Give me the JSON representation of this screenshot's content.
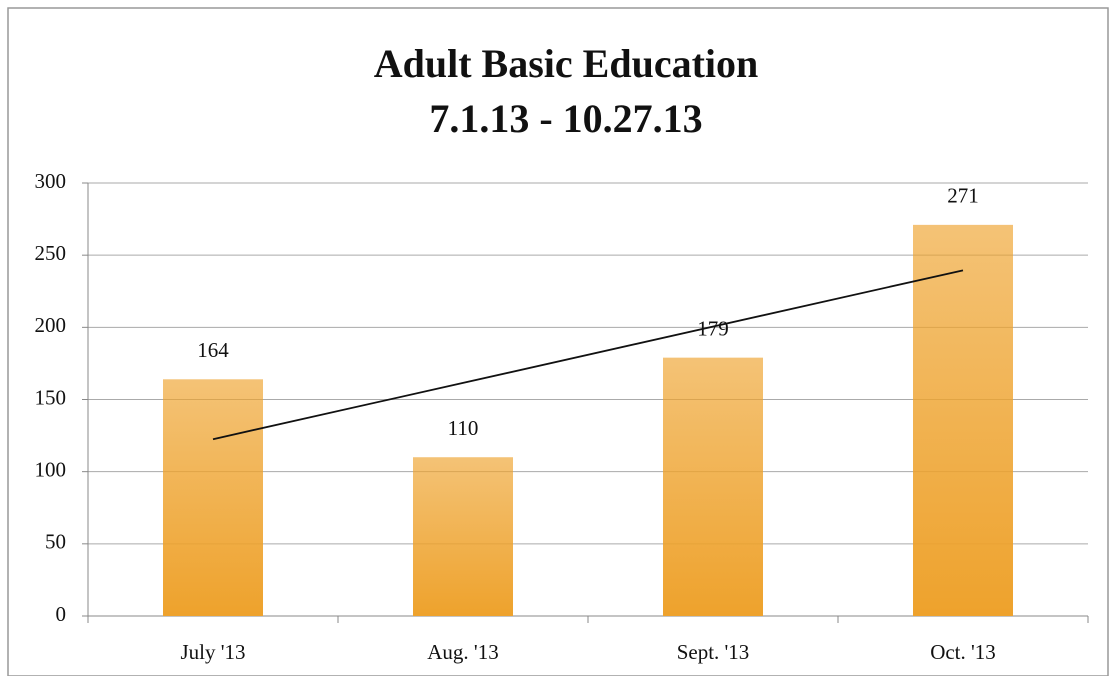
{
  "chart_data": {
    "type": "bar",
    "title": [
      "Adult Basic Education",
      "7.1.13 - 10.27.13"
    ],
    "categories": [
      "July '13",
      "Aug. '13",
      "Sept. '13",
      "Oct. '13"
    ],
    "values": [
      164,
      110,
      179,
      271
    ],
    "color": "#eea22c",
    "ylim": [
      0,
      300
    ],
    "yticks": [
      0,
      50,
      100,
      150,
      200,
      250,
      300
    ],
    "grid": true,
    "data_labels": true,
    "trendline": "linear"
  }
}
